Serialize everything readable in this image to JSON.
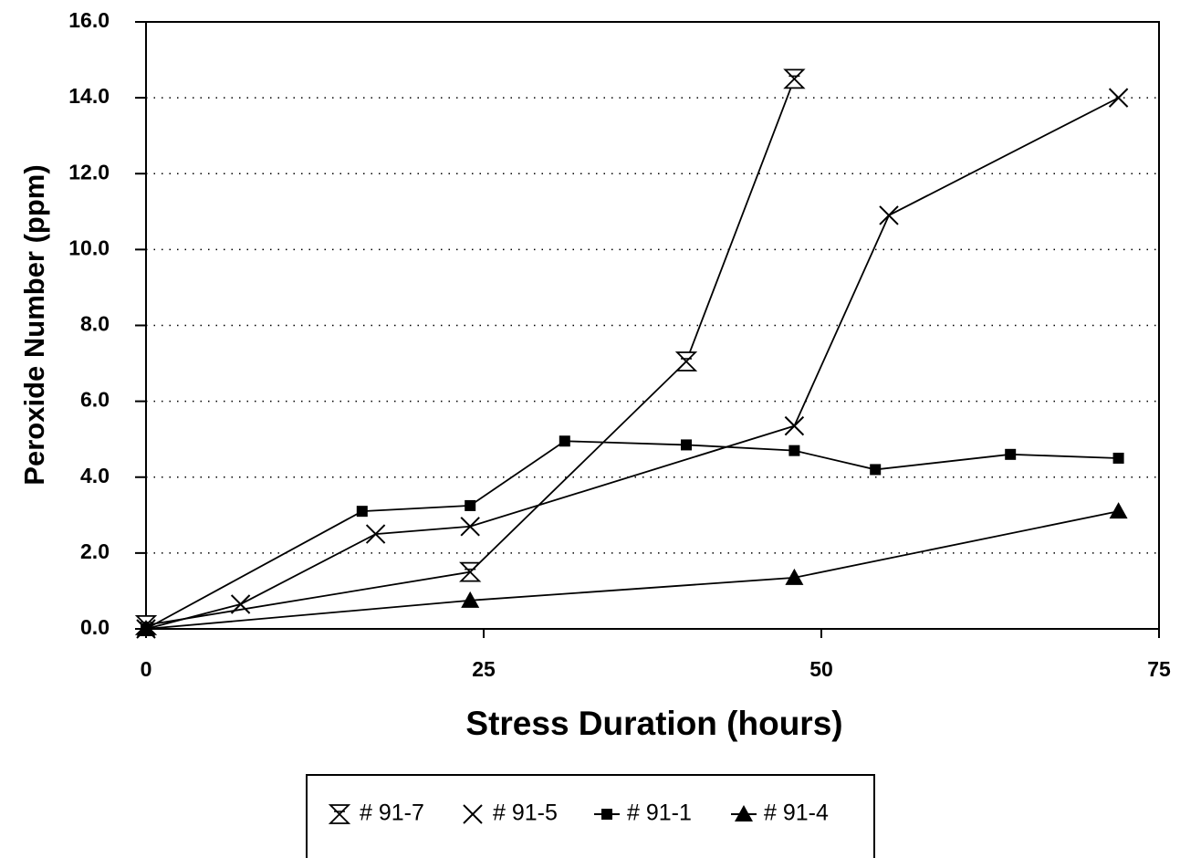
{
  "chart_data": {
    "type": "line",
    "xlabel": "Stress Duration (hours)",
    "ylabel": "Peroxide Number (ppm)",
    "xlim": [
      0,
      75
    ],
    "xticks": [
      0,
      25,
      50,
      75
    ],
    "ylim": [
      0,
      16
    ],
    "yticks": [
      {
        "value": 0,
        "label": "0.0"
      },
      {
        "value": 2,
        "label": "2.0"
      },
      {
        "value": 4,
        "label": "4.0"
      },
      {
        "value": 6,
        "label": "6.0"
      },
      {
        "value": 8,
        "label": "8.0"
      },
      {
        "value": 10,
        "label": "10.0"
      },
      {
        "value": 12,
        "label": "12.0"
      },
      {
        "value": 14,
        "label": "14.0"
      },
      {
        "value": 16,
        "label": "16.0"
      }
    ],
    "grid": true,
    "legend": "bottom",
    "series": [
      {
        "name": "# 91-7",
        "color": "#000000",
        "marker": "hourglass",
        "x": [
          0,
          24,
          40,
          48
        ],
        "values": [
          0.1,
          1.5,
          7.05,
          14.5
        ]
      },
      {
        "name": "# 91-5",
        "color": "#000000",
        "marker": "cross",
        "x": [
          0,
          7,
          17,
          24,
          48,
          55,
          72
        ],
        "values": [
          0,
          0.65,
          2.5,
          2.7,
          5.35,
          10.9,
          14
        ]
      },
      {
        "name": "# 91-1",
        "color": "#000000",
        "marker": "square",
        "x": [
          0,
          16,
          24,
          31,
          40,
          48,
          54,
          64,
          72
        ],
        "values": [
          0,
          3.1,
          3.25,
          4.95,
          4.85,
          4.7,
          4.2,
          4.6,
          4.5
        ]
      },
      {
        "name": "# 91-4",
        "color": "#000000",
        "marker": "triangle",
        "x": [
          0,
          24,
          48,
          72
        ],
        "values": [
          0,
          0.75,
          1.35,
          3.1
        ]
      }
    ]
  }
}
